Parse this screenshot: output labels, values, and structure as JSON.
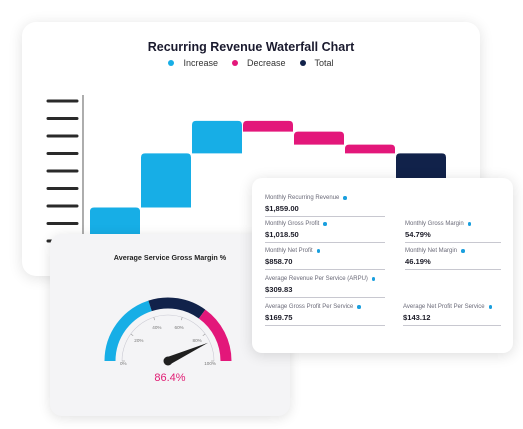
{
  "chart": {
    "title": "Recurring Revenue Waterfall Chart",
    "legend": [
      {
        "label": "Increase",
        "color": "#17aee6"
      },
      {
        "label": "Decrease",
        "color": "#e3177a"
      },
      {
        "label": "Total",
        "color": "#11224a"
      }
    ]
  },
  "chart_data": {
    "type": "bar",
    "title": "Recurring Revenue Waterfall Chart",
    "series": [
      {
        "name": "Increase",
        "values": [
          3,
          5,
          3,
          0,
          0,
          0,
          0
        ]
      },
      {
        "name": "Decrease",
        "values": [
          0,
          0,
          0,
          1,
          1.2,
          0.8,
          0
        ]
      },
      {
        "name": "Total",
        "values": [
          0,
          0,
          0,
          0,
          0,
          0,
          8.0
        ]
      }
    ],
    "bars": [
      {
        "kind": "increase",
        "start": 0,
        "end": 3
      },
      {
        "kind": "increase",
        "start": 3,
        "end": 8
      },
      {
        "kind": "increase",
        "start": 8,
        "end": 11
      },
      {
        "kind": "decrease",
        "start": 11,
        "end": 10
      },
      {
        "kind": "decrease",
        "start": 10,
        "end": 8.8
      },
      {
        "kind": "decrease",
        "start": 8.8,
        "end": 8.0
      },
      {
        "kind": "total",
        "start": 0,
        "end": 8.0
      }
    ],
    "ylim": [
      0,
      12
    ],
    "colors": {
      "increase": "#17aee6",
      "decrease": "#e3177a",
      "total": "#11224a"
    },
    "grid": false,
    "legend_position": "top"
  },
  "gauge": {
    "title": "Average Service Gross Margin %",
    "value_text": "86.4%",
    "value": 86.4,
    "min": 0,
    "max": 100,
    "ticks": [
      "0%",
      "20%",
      "40%",
      "60%",
      "80%",
      "100%"
    ],
    "bands": [
      {
        "from": 0,
        "to": 40,
        "color": "#17aee6"
      },
      {
        "from": 40,
        "to": 70,
        "color": "#11224a"
      },
      {
        "from": 70,
        "to": 100,
        "color": "#e3177a"
      }
    ]
  },
  "metrics": {
    "mrr": {
      "label": "Monthly Recurring Revenue",
      "value": "$1,859.00"
    },
    "gross_profit": {
      "label": "Monthly Gross Profit",
      "value": "$1,018.50"
    },
    "gross_margin": {
      "label": "Monthly Gross Margin",
      "value": "54.79%"
    },
    "net_profit": {
      "label": "Monthly Net Profit",
      "value": "$858.70"
    },
    "net_margin": {
      "label": "Monthly Net Margin",
      "value": "46.19%"
    },
    "arpu": {
      "label": "Average Revenue Per Service (ARPU)",
      "value": "$309.83"
    },
    "avg_gross_profit": {
      "label": "Average Gross Profit Per Service",
      "value": "$169.75"
    },
    "avg_net_profit": {
      "label": "Average Net Profit Per Service",
      "value": "$143.12"
    }
  }
}
